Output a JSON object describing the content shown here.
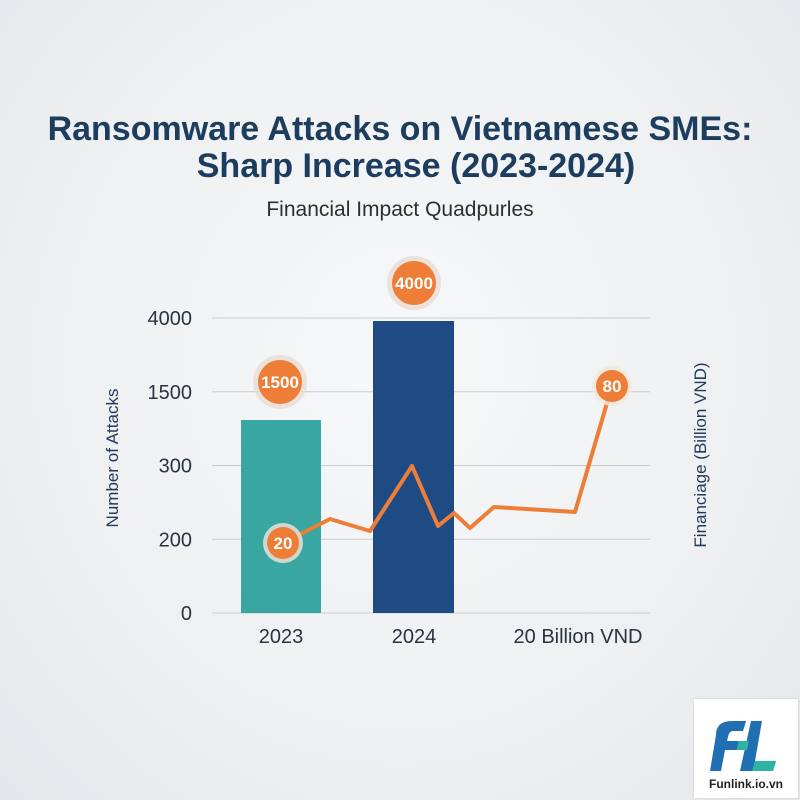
{
  "title_line1": "Ransomware Attacks on Vietnamese SMEs:",
  "title_line2": "Sharp Increase (2023-2024)",
  "subtitle": "Financial Impact Quadpurles",
  "logo_text": "Funlink.io.vn",
  "colors": {
    "bar_2023": "#3aa6a2",
    "bar_2024": "#1f4b85",
    "line": "#ee7d37",
    "badge": "#ee7d37",
    "title": "#1d3d5e"
  },
  "chart_data": {
    "type": "bar",
    "title": "Ransomware Attacks on Vietnamese SMEs: Sharp Increase (2023-2024)",
    "subtitle": "Financial Impact Quadpurles",
    "ylabel": "Number of Attacks",
    "ylabel_right": "Financiage  (Billion VND)",
    "y_ticks": [
      "0",
      "200",
      "300",
      "1500",
      "4000"
    ],
    "x_ticks": [
      "2023",
      "2024",
      "20 Billion VND"
    ],
    "categories": [
      "2023",
      "2024"
    ],
    "series": [
      {
        "values": [
          1500,
          4000
        ]
      }
    ],
    "data_labels": [
      "1500",
      "4000"
    ],
    "line_series": {
      "type": "line",
      "axis": "right",
      "start_label": "20",
      "end_label": "80",
      "start_value": 20,
      "end_value": 80
    },
    "grid": true
  }
}
